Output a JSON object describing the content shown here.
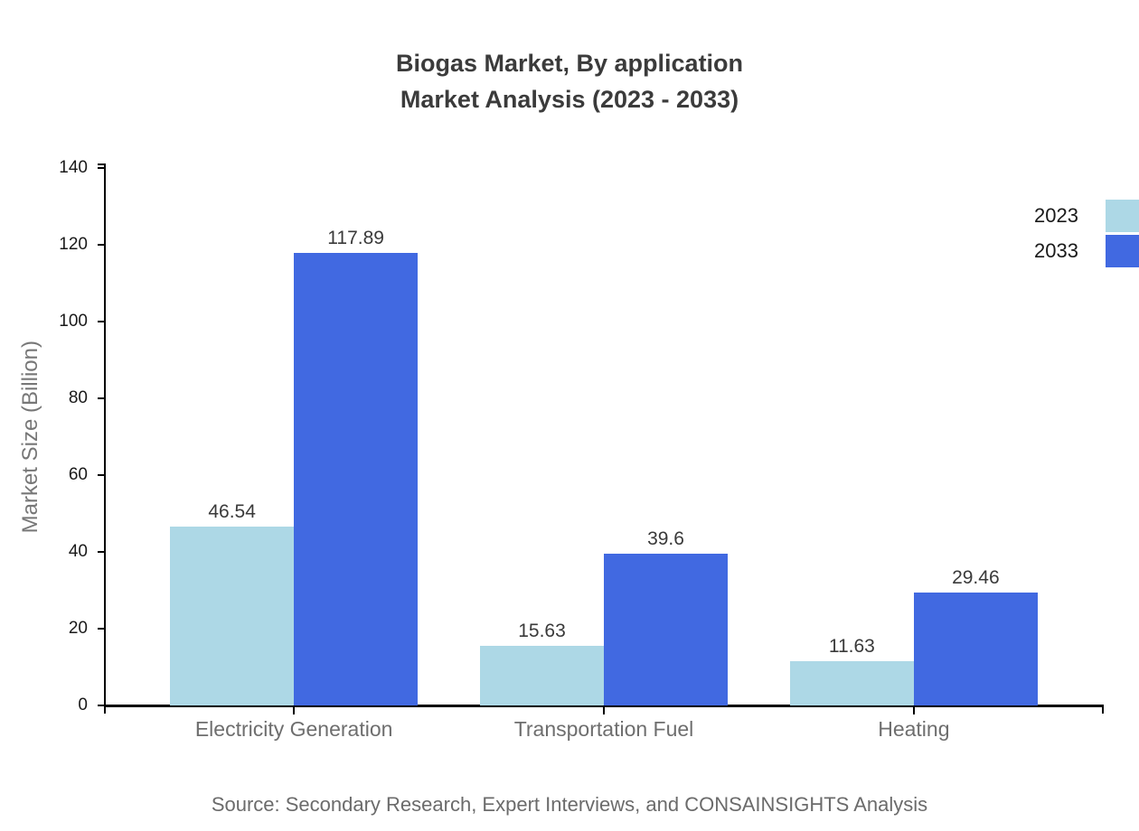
{
  "title": {
    "line1": "Biogas Market, By application",
    "line2": "Market Analysis (2023 - 2033)"
  },
  "source": "Source: Secondary Research, Expert Interviews, and CONSAINSIGHTS Analysis",
  "colors": {
    "background": "#ffffff",
    "axis": "#000000",
    "title_text": "#3b3b3b",
    "tick_label": "#1a1a1a",
    "value_label": "#3a3a3a",
    "category_label": "#6e6e6e",
    "axis_title": "#777777",
    "source_text": "#6b6b6b",
    "series_2023": "#ADD8E6",
    "series_2033": "#4169E1"
  },
  "chart_data": {
    "type": "bar",
    "title": "Biogas Market, By application Market Analysis (2023 - 2033)",
    "categories": [
      "Electricity Generation",
      "Transportation Fuel",
      "Heating"
    ],
    "series": [
      {
        "name": "2023",
        "color": "#ADD8E6",
        "values": [
          46.54,
          15.63,
          11.63
        ]
      },
      {
        "name": "2033",
        "color": "#4169E1",
        "values": [
          117.89,
          39.6,
          29.46
        ]
      }
    ],
    "value_labels": [
      [
        "46.54",
        "15.63",
        "11.63"
      ],
      [
        "117.89",
        "39.6",
        "29.46"
      ]
    ],
    "xlabel": "",
    "ylabel": "Market Size (Billion)",
    "ylim": [
      0,
      140
    ],
    "yticks": [
      0,
      20,
      40,
      60,
      80,
      100,
      120,
      140
    ],
    "grid": false,
    "legend_position": "top-right",
    "bar_grouping": "grouped"
  }
}
